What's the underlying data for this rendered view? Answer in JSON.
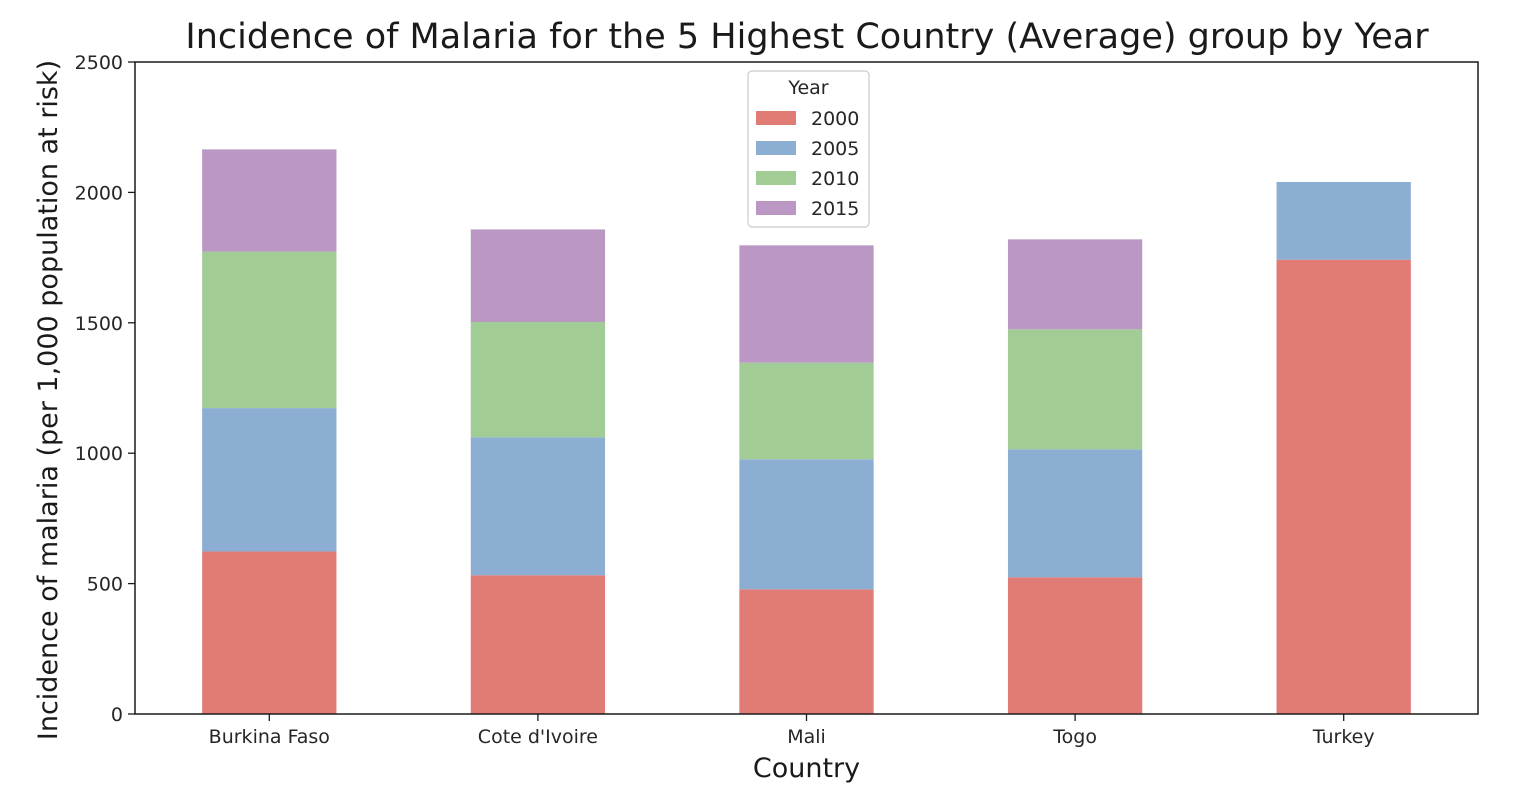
{
  "chart_data": {
    "type": "bar",
    "stacked": true,
    "title": "Incidence of Malaria for the 5 Highest Country (Average) group by Year",
    "xlabel": "Country",
    "ylabel": "Incidence of malaria (per 1,000 population at risk)",
    "ylim": [
      0,
      2500
    ],
    "yticks": [
      "0",
      "500",
      "1000",
      "1500",
      "2000",
      "2500"
    ],
    "categories": [
      "Burkina Faso",
      "Cote d'Ivoire",
      "Mali",
      "Togo",
      "Turkey"
    ],
    "grid": false,
    "legend": {
      "title": "Year",
      "position": "top-center"
    },
    "series": [
      {
        "name": "2000",
        "color": "#e07b76",
        "values": [
          623,
          532,
          478,
          524,
          1742
        ]
      },
      {
        "name": "2005",
        "color": "#8daed3",
        "values": [
          550,
          529,
          499,
          491,
          298
        ]
      },
      {
        "name": "2010",
        "color": "#a1cc95",
        "values": [
          600,
          442,
          370,
          460,
          0
        ]
      },
      {
        "name": "2015",
        "color": "#bb97c4",
        "values": [
          392,
          355,
          450,
          345,
          0
        ]
      }
    ]
  }
}
